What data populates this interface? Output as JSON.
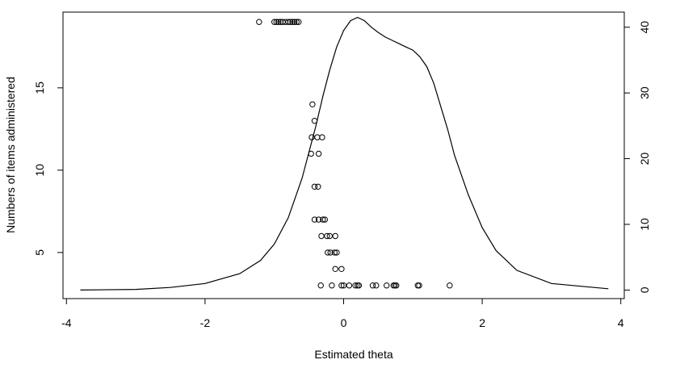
{
  "chart_data": {
    "type": "scatter",
    "xlabel": "Estimated theta",
    "ylabel": "Numbers of items administered",
    "xlim": [
      -4.05,
      4.05
    ],
    "ylim": [
      2.2,
      19.6
    ],
    "xticks": [
      "-4",
      "-2",
      "0",
      "2",
      "4"
    ],
    "yticks": [
      "5",
      "10",
      "15"
    ],
    "y2lim": [
      -1.3,
      42.3
    ],
    "y2ticks": [
      "0",
      "10",
      "20",
      "30",
      "40"
    ],
    "grid": false,
    "points": [
      {
        "x": -1.22,
        "y": 19
      },
      {
        "x": -1.0,
        "y": 19
      },
      {
        "x": -0.97,
        "y": 19
      },
      {
        "x": -0.94,
        "y": 19
      },
      {
        "x": -0.91,
        "y": 19
      },
      {
        "x": -0.88,
        "y": 19
      },
      {
        "x": -0.84,
        "y": 19
      },
      {
        "x": -0.8,
        "y": 19
      },
      {
        "x": -0.77,
        "y": 19
      },
      {
        "x": -0.74,
        "y": 19
      },
      {
        "x": -0.71,
        "y": 19
      },
      {
        "x": -0.68,
        "y": 19
      },
      {
        "x": -0.65,
        "y": 19
      },
      {
        "x": -0.45,
        "y": 14
      },
      {
        "x": -0.42,
        "y": 13
      },
      {
        "x": -0.46,
        "y": 12
      },
      {
        "x": -0.38,
        "y": 12
      },
      {
        "x": -0.31,
        "y": 12
      },
      {
        "x": -0.47,
        "y": 11
      },
      {
        "x": -0.36,
        "y": 11
      },
      {
        "x": -0.42,
        "y": 9
      },
      {
        "x": -0.37,
        "y": 9
      },
      {
        "x": -0.42,
        "y": 7
      },
      {
        "x": -0.36,
        "y": 7
      },
      {
        "x": -0.3,
        "y": 7
      },
      {
        "x": -0.27,
        "y": 7
      },
      {
        "x": -0.32,
        "y": 6
      },
      {
        "x": -0.24,
        "y": 6
      },
      {
        "x": -0.2,
        "y": 6
      },
      {
        "x": -0.12,
        "y": 6
      },
      {
        "x": -0.23,
        "y": 5
      },
      {
        "x": -0.19,
        "y": 5
      },
      {
        "x": -0.13,
        "y": 5
      },
      {
        "x": -0.1,
        "y": 5
      },
      {
        "x": -0.12,
        "y": 4
      },
      {
        "x": -0.03,
        "y": 4
      },
      {
        "x": -0.33,
        "y": 3
      },
      {
        "x": -0.17,
        "y": 3
      },
      {
        "x": -0.03,
        "y": 3
      },
      {
        "x": 0.0,
        "y": 3
      },
      {
        "x": 0.08,
        "y": 3
      },
      {
        "x": 0.17,
        "y": 3
      },
      {
        "x": 0.2,
        "y": 3
      },
      {
        "x": 0.22,
        "y": 3
      },
      {
        "x": 0.42,
        "y": 3
      },
      {
        "x": 0.47,
        "y": 3
      },
      {
        "x": 0.62,
        "y": 3
      },
      {
        "x": 0.72,
        "y": 3
      },
      {
        "x": 0.74,
        "y": 3
      },
      {
        "x": 0.76,
        "y": 3
      },
      {
        "x": 1.07,
        "y": 3
      },
      {
        "x": 1.09,
        "y": 3
      },
      {
        "x": 1.53,
        "y": 3
      }
    ],
    "density_curve": {
      "axis": "right",
      "x": [
        -3.8,
        -3.0,
        -2.5,
        -2.0,
        -1.5,
        -1.2,
        -1.0,
        -0.8,
        -0.6,
        -0.5,
        -0.4,
        -0.3,
        -0.2,
        -0.1,
        0.0,
        0.1,
        0.2,
        0.3,
        0.4,
        0.5,
        0.6,
        0.7,
        0.8,
        0.9,
        1.0,
        1.1,
        1.2,
        1.3,
        1.4,
        1.5,
        1.6,
        1.8,
        2.0,
        2.2,
        2.5,
        3.0,
        3.5,
        3.82
      ],
      "y": [
        0.0,
        0.1,
        0.4,
        1.0,
        2.5,
        4.5,
        7.0,
        11.0,
        17.0,
        21.0,
        25.0,
        29.5,
        33.5,
        37.0,
        39.5,
        41.0,
        41.5,
        41.0,
        40.0,
        39.2,
        38.5,
        38.0,
        37.5,
        37.0,
        36.5,
        35.5,
        34.0,
        31.5,
        28.0,
        24.5,
        20.5,
        14.5,
        9.5,
        6.0,
        3.0,
        1.0,
        0.5,
        0.2
      ]
    }
  }
}
